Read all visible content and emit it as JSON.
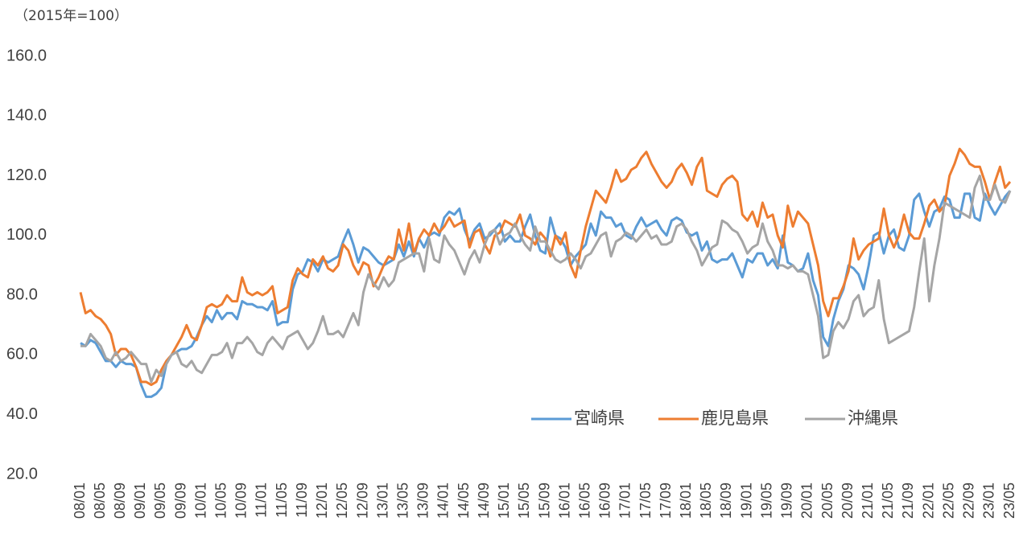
{
  "chart_data": {
    "type": "line",
    "title": "（2015年=100）",
    "categories": [
      "08/01",
      null,
      null,
      null,
      "08/05",
      null,
      null,
      null,
      "08/09",
      null,
      null,
      null,
      "09/01",
      null,
      null,
      null,
      "09/05",
      null,
      null,
      null,
      "09/09",
      null,
      null,
      null,
      "10/01",
      null,
      null,
      null,
      "10/05",
      null,
      null,
      null,
      "10/09",
      null,
      null,
      null,
      "11/01",
      null,
      null,
      null,
      "11/05",
      null,
      null,
      null,
      "11/09",
      null,
      null,
      null,
      "12/01",
      null,
      null,
      null,
      "12/05",
      null,
      null,
      null,
      "12/09",
      null,
      null,
      null,
      "13/01",
      null,
      null,
      null,
      "13/05",
      null,
      null,
      null,
      "13/09",
      null,
      null,
      null,
      "14/01",
      null,
      null,
      null,
      "14/05",
      null,
      null,
      null,
      "14/09",
      null,
      null,
      null,
      "15/01",
      null,
      null,
      null,
      "15/05",
      null,
      null,
      null,
      "15/09",
      null,
      null,
      null,
      "16/01",
      null,
      null,
      null,
      "16/05",
      null,
      null,
      null,
      "16/09",
      null,
      null,
      null,
      "17/01",
      null,
      null,
      null,
      "17/05",
      null,
      null,
      null,
      "17/09",
      null,
      null,
      null,
      "18/01",
      null,
      null,
      null,
      "18/05",
      null,
      null,
      null,
      "18/09",
      null,
      null,
      null,
      "19/01",
      null,
      null,
      null,
      "19/05",
      null,
      null,
      null,
      "19/09",
      null,
      null,
      null,
      "20/01",
      null,
      null,
      null,
      "20/05",
      null,
      null,
      null,
      "20/09",
      null,
      null,
      null,
      "21/01",
      null,
      null,
      null,
      "21/05",
      null,
      null,
      null,
      "21/09",
      null,
      null,
      null,
      "22/01",
      null,
      null,
      null,
      "22/05",
      null,
      null,
      null,
      "22/09",
      null,
      null,
      null,
      "23/01",
      null,
      null,
      null,
      "23/05"
    ],
    "series": [
      {
        "name": "宮崎県",
        "color": "#5b9bd5",
        "values": [
          64,
          63,
          65,
          64,
          61,
          58,
          58,
          56,
          58,
          57,
          57,
          56,
          50,
          46,
          46,
          47,
          49,
          57,
          60,
          61,
          62,
          62,
          63,
          66,
          70,
          73,
          71,
          75,
          72,
          74,
          74,
          72,
          78,
          77,
          77,
          76,
          76,
          75,
          78,
          70,
          71,
          71,
          82,
          87,
          88,
          92,
          91,
          88,
          92,
          91,
          92,
          93,
          98,
          102,
          97,
          91,
          96,
          95,
          93,
          91,
          90,
          91,
          92,
          97,
          93,
          98,
          93,
          99,
          96,
          100,
          101,
          100,
          106,
          108,
          107,
          109,
          102,
          98,
          102,
          104,
          99,
          100,
          102,
          104,
          98,
          100,
          98,
          98,
          103,
          107,
          100,
          95,
          94,
          106,
          100,
          99,
          96,
          90,
          93,
          95,
          97,
          104,
          100,
          108,
          106,
          106,
          103,
          104,
          100,
          99,
          103,
          106,
          103,
          104,
          105,
          102,
          100,
          105,
          106,
          105,
          101,
          100,
          101,
          95,
          98,
          92,
          91,
          92,
          92,
          94,
          90,
          86,
          92,
          91,
          94,
          94,
          90,
          92,
          89,
          100,
          91,
          90,
          88,
          89,
          94,
          85,
          80,
          66,
          63,
          72,
          78,
          82,
          90,
          89,
          87,
          82,
          90,
          100,
          101,
          94,
          100,
          102,
          96,
          95,
          100,
          112,
          114,
          108,
          103,
          108,
          109,
          113,
          112,
          106,
          106,
          114,
          114,
          106,
          105,
          114,
          110,
          107,
          110,
          113,
          115
        ]
      },
      {
        "name": "鹿児島県",
        "color": "#ed7d31",
        "values": [
          81,
          74,
          75,
          73,
          72,
          70,
          67,
          60,
          62,
          62,
          60,
          56,
          51,
          51,
          50,
          51,
          55,
          58,
          60,
          63,
          66,
          70,
          66,
          65,
          70,
          76,
          77,
          76,
          77,
          80,
          78,
          78,
          86,
          81,
          80,
          81,
          80,
          81,
          83,
          74,
          75,
          76,
          85,
          89,
          87,
          86,
          92,
          90,
          93,
          89,
          88,
          90,
          97,
          95,
          90,
          87,
          91,
          90,
          83,
          86,
          90,
          93,
          92,
          102,
          95,
          104,
          94,
          99,
          102,
          100,
          104,
          101,
          103,
          106,
          103,
          104,
          105,
          96,
          101,
          102,
          97,
          94,
          100,
          101,
          105,
          104,
          103,
          107,
          100,
          99,
          97,
          101,
          99,
          93,
          100,
          97,
          101,
          90,
          86,
          95,
          103,
          109,
          115,
          113,
          111,
          116,
          122,
          118,
          119,
          122,
          123,
          126,
          128,
          124,
          121,
          118,
          116,
          118,
          122,
          124,
          121,
          117,
          123,
          126,
          115,
          114,
          113,
          117,
          119,
          120,
          118,
          107,
          105,
          108,
          103,
          111,
          106,
          107,
          100,
          96,
          110,
          103,
          108,
          106,
          104,
          97,
          90,
          78,
          73,
          79,
          79,
          83,
          88,
          99,
          92,
          95,
          97,
          98,
          99,
          109,
          100,
          96,
          100,
          107,
          101,
          99,
          99,
          104,
          110,
          112,
          108,
          110,
          120,
          124,
          129,
          127,
          124,
          123,
          123,
          118,
          112,
          118,
          123,
          116,
          118
        ]
      },
      {
        "name": "沖縄県",
        "color": "#a5a5a5",
        "values": [
          63,
          63,
          67,
          65,
          63,
          59,
          58,
          61,
          58,
          59,
          61,
          59,
          57,
          57,
          51,
          55,
          53,
          57,
          60,
          61,
          57,
          56,
          58,
          55,
          54,
          57,
          60,
          60,
          61,
          64,
          59,
          64,
          64,
          66,
          64,
          61,
          60,
          64,
          66,
          64,
          62,
          66,
          67,
          68,
          65,
          62,
          64,
          68,
          73,
          67,
          67,
          68,
          66,
          70,
          74,
          70,
          81,
          87,
          84,
          82,
          86,
          83,
          85,
          91,
          92,
          93,
          94,
          94,
          88,
          99,
          92,
          91,
          100,
          97,
          95,
          91,
          87,
          92,
          95,
          91,
          97,
          101,
          102,
          97,
          100,
          101,
          104,
          100,
          97,
          95,
          103,
          98,
          98,
          95,
          92,
          91,
          92,
          94,
          92,
          89,
          93,
          94,
          97,
          100,
          101,
          93,
          98,
          99,
          101,
          100,
          98,
          100,
          102,
          99,
          100,
          97,
          97,
          98,
          103,
          104,
          102,
          98,
          95,
          90,
          93,
          96,
          97,
          105,
          104,
          102,
          101,
          98,
          94,
          96,
          97,
          104,
          98,
          95,
          90,
          90,
          89,
          90,
          88,
          88,
          87,
          80,
          73,
          59,
          60,
          68,
          71,
          69,
          72,
          78,
          80,
          73,
          75,
          76,
          85,
          72,
          64,
          65,
          66,
          67,
          68,
          76,
          88,
          99,
          78,
          90,
          99,
          111,
          110,
          109,
          108,
          107,
          106,
          116,
          120,
          112,
          112,
          117,
          112,
          111,
          115
        ]
      }
    ],
    "ylim": [
      20,
      160
    ],
    "yticks": [
      {
        "value": 20,
        "label": "20.0"
      },
      {
        "value": 40,
        "label": "40.0"
      },
      {
        "value": 60,
        "label": "60.0"
      },
      {
        "value": 80,
        "label": "80.0"
      },
      {
        "value": 100,
        "label": "100.0"
      },
      {
        "value": 120,
        "label": "120.0"
      },
      {
        "value": 140,
        "label": "140.0"
      },
      {
        "value": 160,
        "label": "160.0"
      }
    ],
    "grid": false,
    "legend": "bottom-right"
  }
}
